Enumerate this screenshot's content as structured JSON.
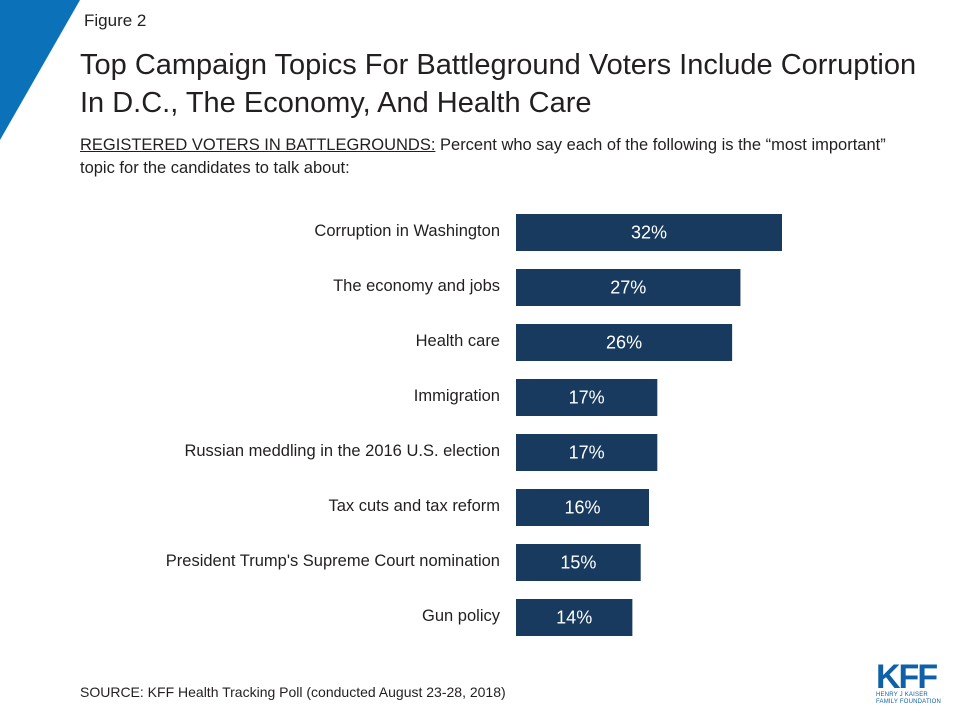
{
  "header": {
    "figure_label": "Figure 2",
    "title": "Top Campaign Topics For Battleground Voters Include Corruption In D.C., The Economy, And Health Care",
    "subtitle_lead": "REGISTERED VOTERS IN BATTLEGROUNDS:",
    "subtitle_rest": " Percent who say each of the following is the “most important” topic for the candidates to talk about:"
  },
  "colors": {
    "bar": "#173a5e",
    "accent": "#0b72b9"
  },
  "chart_data": {
    "type": "bar",
    "orientation": "horizontal",
    "categories": [
      "Corruption in Washington",
      "The economy and jobs",
      "Health care",
      "Immigration",
      "Russian meddling in the 2016 U.S. election",
      "Tax cuts and tax reform",
      "President Trump's Supreme Court nomination",
      "Gun policy"
    ],
    "values": [
      32,
      27,
      26,
      17,
      17,
      16,
      15,
      14
    ],
    "value_labels": [
      "32%",
      "27%",
      "26%",
      "17%",
      "17%",
      "16%",
      "15%",
      "14%"
    ],
    "title": "Top Campaign Topics For Battleground Voters Include Corruption In D.C., The Economy, And Health Care",
    "xlabel": "",
    "ylabel": "",
    "grid": false,
    "legend": "none"
  },
  "footer": {
    "source": "SOURCE: KFF Health Tracking Poll (conducted August 23-28, 2018)",
    "logo_mark": "KFF",
    "logo_line1": "HENRY J KAISER",
    "logo_line2": "FAMILY FOUNDATION"
  }
}
